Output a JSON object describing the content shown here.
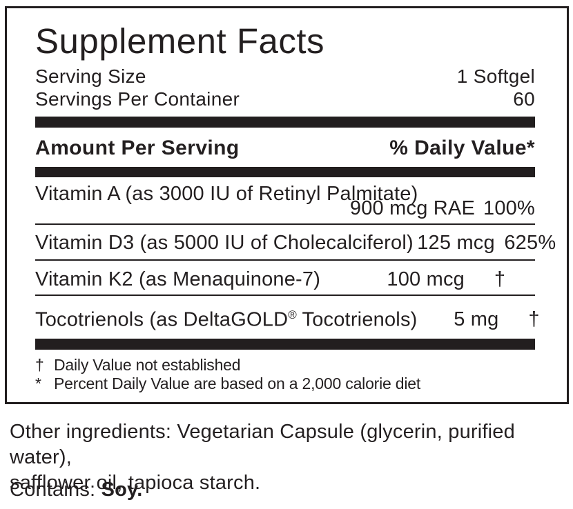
{
  "colors": {
    "ink": "#231f20",
    "bar": "#221e1f",
    "background": "#ffffff"
  },
  "supplement_facts": {
    "title": "Supplement Facts",
    "serving_size": {
      "label": "Serving Size",
      "value": "1 Softgel"
    },
    "servings_per_container": {
      "label": "Servings Per Container",
      "value": "60"
    },
    "header": {
      "amount": "Amount Per Serving",
      "daily_value": "% Daily Value*"
    },
    "nutrients": [
      {
        "name": "Vitamin A (as 3000 IU of Retinyl Palmitate)",
        "amount": "900 mcg RAE",
        "dv": "100%"
      },
      {
        "name": "Vitamin D3 (as 5000 IU of Cholecalciferol)",
        "amount": "125 mcg",
        "dv": "625%"
      },
      {
        "name": "Vitamin K2 (as Menaquinone-7)",
        "amount": "100 mcg",
        "dv": "†"
      },
      {
        "name": "Tocotrienols (as DeltaGOLD® Tocotrienols)",
        "name_pre": "Tocotrienols (as DeltaGOLD",
        "name_sup": "®",
        "name_post": " Tocotrienols)",
        "amount": "5 mg",
        "dv": "†"
      }
    ],
    "footnotes": [
      {
        "symbol": "†",
        "text": "Daily Value not established"
      },
      {
        "symbol": "*",
        "text": "Percent Daily Value are based on a 2,000 calorie diet"
      }
    ]
  },
  "other_ingredients": {
    "lines": [
      "Other ingredients: Vegetarian Capsule (glycerin, purified water),",
      "safflower oil, tapioca starch."
    ]
  },
  "contains": {
    "label": "Contains:",
    "value": "Soy."
  }
}
